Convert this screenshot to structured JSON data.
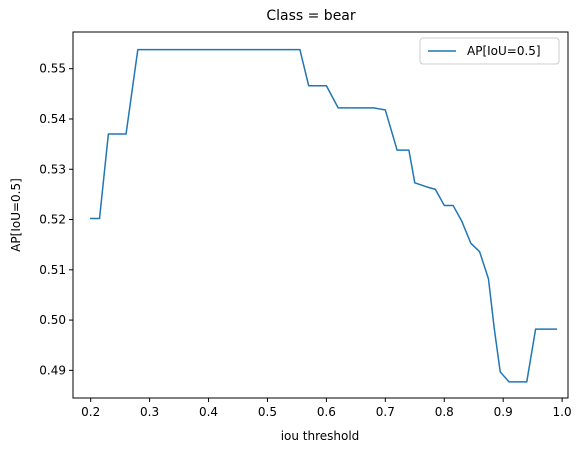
{
  "chart_data": {
    "type": "line",
    "title": "Class = bear",
    "xlabel": "iou threshold",
    "ylabel": "AP[IoU=0.5]",
    "xlim": [
      0.17,
      1.01
    ],
    "ylim": [
      0.4845,
      0.5573
    ],
    "x_ticks": [
      0.2,
      0.3,
      0.4,
      0.5,
      0.6,
      0.7,
      0.8,
      0.9,
      1.0
    ],
    "x_tick_labels": [
      "0.2",
      "0.3",
      "0.4",
      "0.5",
      "0.6",
      "0.7",
      "0.8",
      "0.9",
      "1.0"
    ],
    "y_ticks": [
      0.49,
      0.5,
      0.51,
      0.52,
      0.53,
      0.54,
      0.55
    ],
    "y_tick_labels": [
      "0.49",
      "0.50",
      "0.51",
      "0.52",
      "0.53",
      "0.54",
      "0.55"
    ],
    "grid": false,
    "legend_position": "top-right",
    "series": [
      {
        "name": "AP[IoU=0.5]",
        "color": "#1f77b4",
        "x": [
          0.2,
          0.215,
          0.23,
          0.245,
          0.26,
          0.28,
          0.3,
          0.35,
          0.4,
          0.45,
          0.5,
          0.555,
          0.57,
          0.585,
          0.6,
          0.62,
          0.64,
          0.66,
          0.68,
          0.7,
          0.72,
          0.74,
          0.75,
          0.77,
          0.785,
          0.8,
          0.815,
          0.83,
          0.845,
          0.86,
          0.875,
          0.885,
          0.895,
          0.91,
          0.925,
          0.94,
          0.955,
          0.97,
          0.99
        ],
        "y": [
          0.5202,
          0.5202,
          0.537,
          0.537,
          0.537,
          0.5538,
          0.5538,
          0.5538,
          0.5538,
          0.5538,
          0.5538,
          0.5538,
          0.5466,
          0.5466,
          0.5466,
          0.5422,
          0.5422,
          0.5422,
          0.5422,
          0.5418,
          0.5338,
          0.5338,
          0.5273,
          0.5265,
          0.526,
          0.5228,
          0.5228,
          0.5196,
          0.5153,
          0.5136,
          0.5082,
          0.4982,
          0.4897,
          0.4877,
          0.4877,
          0.4877,
          0.4982,
          0.4982,
          0.4982
        ]
      }
    ]
  }
}
